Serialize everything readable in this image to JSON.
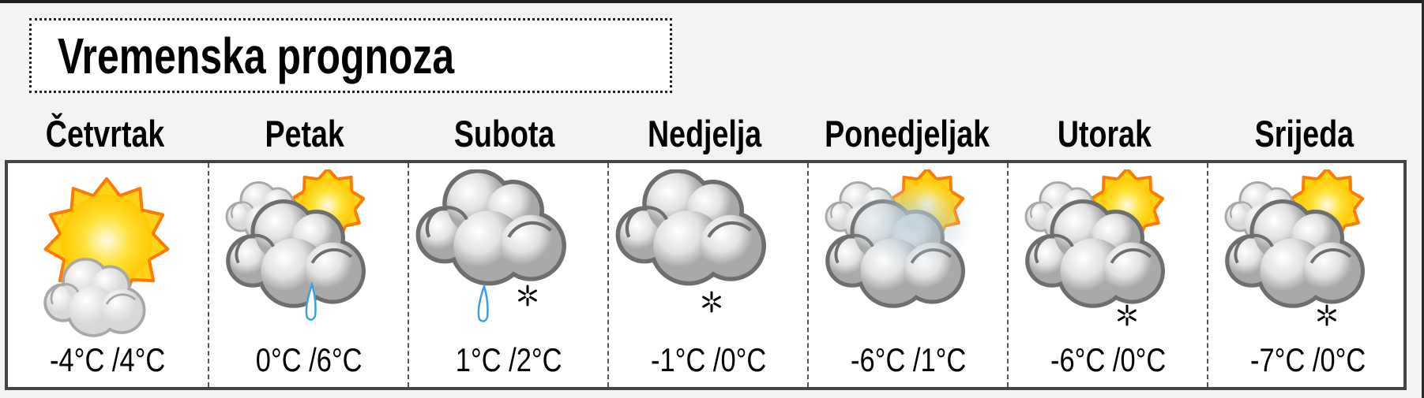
{
  "title": "Vremenska prognoza",
  "colors": {
    "sun": "#ffd21a",
    "sun_edge": "#ff7a00",
    "cloud": "#e8e8e8",
    "cloud_edge": "#6e6e6e",
    "rain": "#3aa0e0"
  },
  "days": [
    {
      "name": "Četvrtak",
      "temp": "-4°C /4°C",
      "icon": "sun-cloud",
      "precip": []
    },
    {
      "name": "Petak",
      "temp": "0°C /6°C",
      "icon": "cloudy-sun",
      "precip": [
        "rain"
      ]
    },
    {
      "name": "Subota",
      "temp": "1°C /2°C",
      "icon": "cloud",
      "precip": [
        "rain",
        "snow"
      ]
    },
    {
      "name": "Nedjelja",
      "temp": "-1°C /0°C",
      "icon": "cloud",
      "precip": [
        "snow"
      ]
    },
    {
      "name": "Ponedjeljak",
      "temp": "-6°C /1°C",
      "icon": "fog-sun",
      "precip": []
    },
    {
      "name": "Utorak",
      "temp": "-6°C /0°C",
      "icon": "cloudy-sun",
      "precip": [
        "snow"
      ]
    },
    {
      "name": "Srijeda",
      "temp": "-7°C /0°C",
      "icon": "cloudy-sun",
      "precip": [
        "snow"
      ]
    }
  ]
}
